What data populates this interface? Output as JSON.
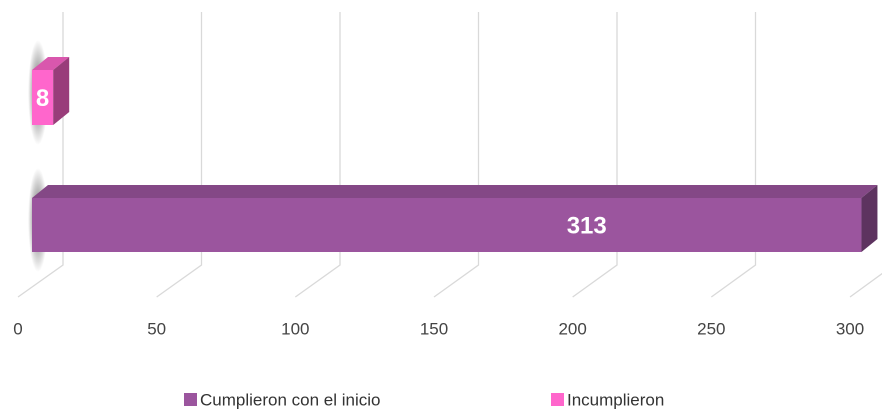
{
  "chart_data": {
    "type": "bar",
    "orientation": "horizontal",
    "series": [
      {
        "name": "Cumplieron con el inicio",
        "color": "#9b559e",
        "values": [
          313
        ]
      },
      {
        "name": "Incumplieron",
        "color": "#ff66cc",
        "values": [
          8
        ]
      }
    ],
    "xlim": [
      0,
      300
    ],
    "xticks": [
      0,
      50,
      100,
      150,
      200,
      250,
      300
    ],
    "grid": true,
    "legend": "bottom"
  }
}
